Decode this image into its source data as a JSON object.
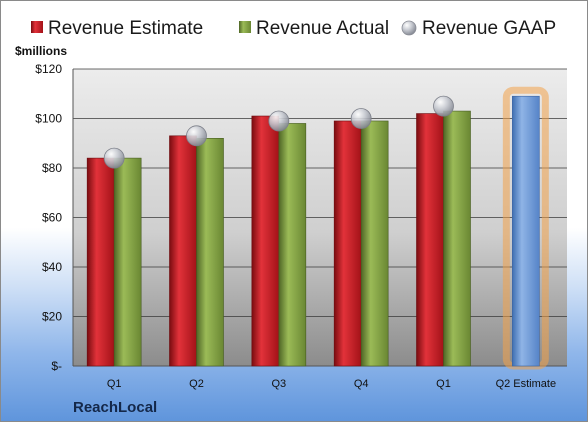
{
  "chart_data": {
    "type": "bar",
    "title": "",
    "unit_label": "$millions",
    "company": "ReachLocal",
    "categories": [
      "Q1",
      "Q2",
      "Q3",
      "Q4",
      "Q1",
      "Q2 Estimate"
    ],
    "ylim": [
      0,
      120
    ],
    "yticks": [
      0,
      20,
      40,
      60,
      80,
      100,
      120
    ],
    "ytick_labels": [
      "$-",
      "$20",
      "$40",
      "$60",
      "$80",
      "$100",
      "$120"
    ],
    "grid": true,
    "legend_position": "top",
    "series": [
      {
        "name": "Revenue Estimate",
        "kind": "bar",
        "color": "#c0161c",
        "values": [
          84,
          93,
          101,
          99,
          102,
          null
        ]
      },
      {
        "name": "Revenue Actual",
        "kind": "bar",
        "color": "#7d9c3c",
        "values": [
          84,
          92,
          98,
          99,
          103,
          null
        ]
      },
      {
        "name": "Revenue GAAP",
        "kind": "marker",
        "color": "#b9bcc4",
        "values": [
          84,
          93,
          99,
          100,
          105,
          null
        ]
      }
    ],
    "estimate": {
      "category": "Q2 Estimate",
      "value": 109,
      "color": "#6d9ad6",
      "glow": "#f3a24a"
    }
  }
}
